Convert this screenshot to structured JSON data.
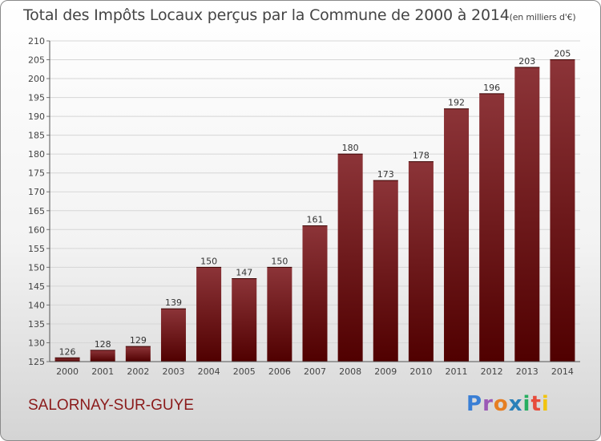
{
  "title": {
    "main": "Total des Impôts Locaux perçus par la Commune de 2000 à 2014",
    "unit": "(en milliers d'€)"
  },
  "commune": "SALORNAY-SUR-GUYE",
  "logo": {
    "letters": [
      "P",
      "r",
      "o",
      "x",
      "i",
      "t",
      "i"
    ]
  },
  "colors": {
    "bar_top": "#8c3438",
    "bar_bottom": "#500000"
  },
  "chart_data": {
    "type": "bar",
    "title": "Total des Impôts Locaux perçus par la Commune de 2000 à 2014 (en milliers d'€)",
    "xlabel": "",
    "ylabel": "",
    "categories": [
      "2000",
      "2001",
      "2002",
      "2003",
      "2004",
      "2005",
      "2006",
      "2007",
      "2008",
      "2009",
      "2010",
      "2011",
      "2012",
      "2013",
      "2014"
    ],
    "values": [
      126,
      128,
      129,
      139,
      150,
      147,
      150,
      161,
      180,
      173,
      178,
      192,
      196,
      203,
      205
    ],
    "ylim": [
      125,
      210
    ],
    "yticks": [
      125,
      130,
      135,
      140,
      145,
      150,
      155,
      160,
      165,
      170,
      175,
      180,
      185,
      190,
      195,
      200,
      205,
      210
    ],
    "grid": true
  }
}
